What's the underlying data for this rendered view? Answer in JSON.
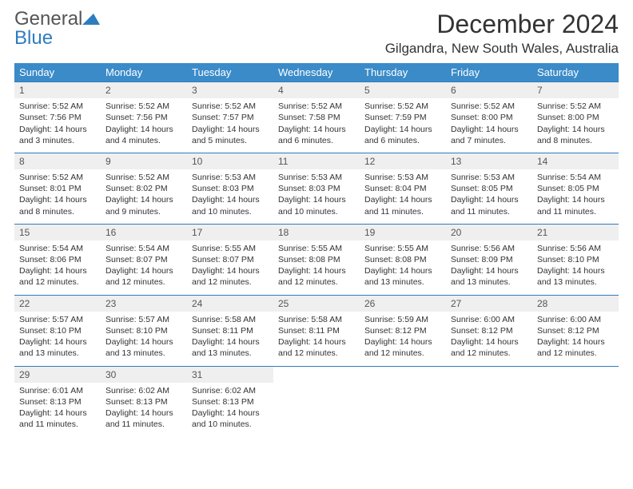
{
  "brand": {
    "line1": "General",
    "line2": "Blue"
  },
  "title": "December 2024",
  "location": "Gilgandra, New South Wales, Australia",
  "header_color": "#3b8bc9",
  "accent_color": "#2e7cc0",
  "days": [
    "Sunday",
    "Monday",
    "Tuesday",
    "Wednesday",
    "Thursday",
    "Friday",
    "Saturday"
  ],
  "weeks": [
    [
      {
        "n": "1",
        "sr": "Sunrise: 5:52 AM",
        "ss": "Sunset: 7:56 PM",
        "d1": "Daylight: 14 hours",
        "d2": "and 3 minutes."
      },
      {
        "n": "2",
        "sr": "Sunrise: 5:52 AM",
        "ss": "Sunset: 7:56 PM",
        "d1": "Daylight: 14 hours",
        "d2": "and 4 minutes."
      },
      {
        "n": "3",
        "sr": "Sunrise: 5:52 AM",
        "ss": "Sunset: 7:57 PM",
        "d1": "Daylight: 14 hours",
        "d2": "and 5 minutes."
      },
      {
        "n": "4",
        "sr": "Sunrise: 5:52 AM",
        "ss": "Sunset: 7:58 PM",
        "d1": "Daylight: 14 hours",
        "d2": "and 6 minutes."
      },
      {
        "n": "5",
        "sr": "Sunrise: 5:52 AM",
        "ss": "Sunset: 7:59 PM",
        "d1": "Daylight: 14 hours",
        "d2": "and 6 minutes."
      },
      {
        "n": "6",
        "sr": "Sunrise: 5:52 AM",
        "ss": "Sunset: 8:00 PM",
        "d1": "Daylight: 14 hours",
        "d2": "and 7 minutes."
      },
      {
        "n": "7",
        "sr": "Sunrise: 5:52 AM",
        "ss": "Sunset: 8:00 PM",
        "d1": "Daylight: 14 hours",
        "d2": "and 8 minutes."
      }
    ],
    [
      {
        "n": "8",
        "sr": "Sunrise: 5:52 AM",
        "ss": "Sunset: 8:01 PM",
        "d1": "Daylight: 14 hours",
        "d2": "and 8 minutes."
      },
      {
        "n": "9",
        "sr": "Sunrise: 5:52 AM",
        "ss": "Sunset: 8:02 PM",
        "d1": "Daylight: 14 hours",
        "d2": "and 9 minutes."
      },
      {
        "n": "10",
        "sr": "Sunrise: 5:53 AM",
        "ss": "Sunset: 8:03 PM",
        "d1": "Daylight: 14 hours",
        "d2": "and 10 minutes."
      },
      {
        "n": "11",
        "sr": "Sunrise: 5:53 AM",
        "ss": "Sunset: 8:03 PM",
        "d1": "Daylight: 14 hours",
        "d2": "and 10 minutes."
      },
      {
        "n": "12",
        "sr": "Sunrise: 5:53 AM",
        "ss": "Sunset: 8:04 PM",
        "d1": "Daylight: 14 hours",
        "d2": "and 11 minutes."
      },
      {
        "n": "13",
        "sr": "Sunrise: 5:53 AM",
        "ss": "Sunset: 8:05 PM",
        "d1": "Daylight: 14 hours",
        "d2": "and 11 minutes."
      },
      {
        "n": "14",
        "sr": "Sunrise: 5:54 AM",
        "ss": "Sunset: 8:05 PM",
        "d1": "Daylight: 14 hours",
        "d2": "and 11 minutes."
      }
    ],
    [
      {
        "n": "15",
        "sr": "Sunrise: 5:54 AM",
        "ss": "Sunset: 8:06 PM",
        "d1": "Daylight: 14 hours",
        "d2": "and 12 minutes."
      },
      {
        "n": "16",
        "sr": "Sunrise: 5:54 AM",
        "ss": "Sunset: 8:07 PM",
        "d1": "Daylight: 14 hours",
        "d2": "and 12 minutes."
      },
      {
        "n": "17",
        "sr": "Sunrise: 5:55 AM",
        "ss": "Sunset: 8:07 PM",
        "d1": "Daylight: 14 hours",
        "d2": "and 12 minutes."
      },
      {
        "n": "18",
        "sr": "Sunrise: 5:55 AM",
        "ss": "Sunset: 8:08 PM",
        "d1": "Daylight: 14 hours",
        "d2": "and 12 minutes."
      },
      {
        "n": "19",
        "sr": "Sunrise: 5:55 AM",
        "ss": "Sunset: 8:08 PM",
        "d1": "Daylight: 14 hours",
        "d2": "and 13 minutes."
      },
      {
        "n": "20",
        "sr": "Sunrise: 5:56 AM",
        "ss": "Sunset: 8:09 PM",
        "d1": "Daylight: 14 hours",
        "d2": "and 13 minutes."
      },
      {
        "n": "21",
        "sr": "Sunrise: 5:56 AM",
        "ss": "Sunset: 8:10 PM",
        "d1": "Daylight: 14 hours",
        "d2": "and 13 minutes."
      }
    ],
    [
      {
        "n": "22",
        "sr": "Sunrise: 5:57 AM",
        "ss": "Sunset: 8:10 PM",
        "d1": "Daylight: 14 hours",
        "d2": "and 13 minutes."
      },
      {
        "n": "23",
        "sr": "Sunrise: 5:57 AM",
        "ss": "Sunset: 8:10 PM",
        "d1": "Daylight: 14 hours",
        "d2": "and 13 minutes."
      },
      {
        "n": "24",
        "sr": "Sunrise: 5:58 AM",
        "ss": "Sunset: 8:11 PM",
        "d1": "Daylight: 14 hours",
        "d2": "and 13 minutes."
      },
      {
        "n": "25",
        "sr": "Sunrise: 5:58 AM",
        "ss": "Sunset: 8:11 PM",
        "d1": "Daylight: 14 hours",
        "d2": "and 12 minutes."
      },
      {
        "n": "26",
        "sr": "Sunrise: 5:59 AM",
        "ss": "Sunset: 8:12 PM",
        "d1": "Daylight: 14 hours",
        "d2": "and 12 minutes."
      },
      {
        "n": "27",
        "sr": "Sunrise: 6:00 AM",
        "ss": "Sunset: 8:12 PM",
        "d1": "Daylight: 14 hours",
        "d2": "and 12 minutes."
      },
      {
        "n": "28",
        "sr": "Sunrise: 6:00 AM",
        "ss": "Sunset: 8:12 PM",
        "d1": "Daylight: 14 hours",
        "d2": "and 12 minutes."
      }
    ],
    [
      {
        "n": "29",
        "sr": "Sunrise: 6:01 AM",
        "ss": "Sunset: 8:13 PM",
        "d1": "Daylight: 14 hours",
        "d2": "and 11 minutes."
      },
      {
        "n": "30",
        "sr": "Sunrise: 6:02 AM",
        "ss": "Sunset: 8:13 PM",
        "d1": "Daylight: 14 hours",
        "d2": "and 11 minutes."
      },
      {
        "n": "31",
        "sr": "Sunrise: 6:02 AM",
        "ss": "Sunset: 8:13 PM",
        "d1": "Daylight: 14 hours",
        "d2": "and 10 minutes."
      },
      null,
      null,
      null,
      null
    ]
  ]
}
